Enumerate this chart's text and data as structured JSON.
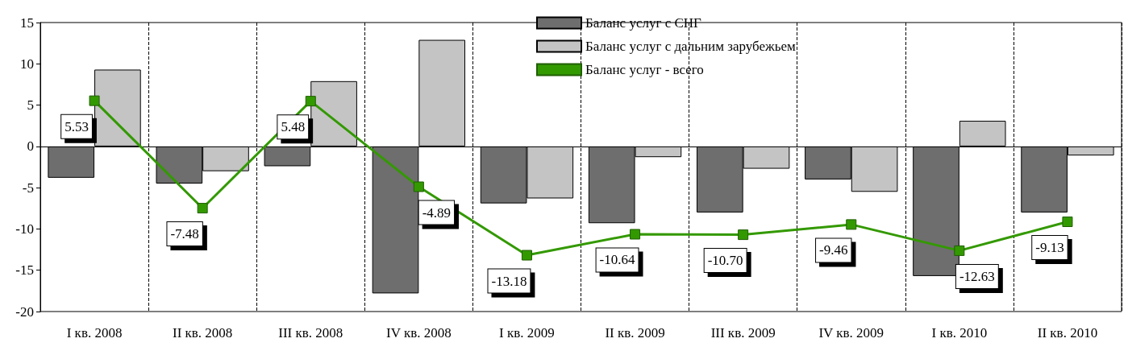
{
  "chart_data": {
    "type": "bar",
    "categories": [
      "I кв. 2008",
      "II кв. 2008",
      "III кв. 2008",
      "IV кв. 2008",
      "I кв. 2009",
      "II кв. 2009",
      "III кв. 2009",
      "IV кв. 2009",
      "I кв. 2010",
      "II кв. 2010"
    ],
    "series": [
      {
        "name": "Баланс услуг с СНГ",
        "color": "#6e6e6e",
        "values": [
          -3.8,
          -4.5,
          -2.4,
          -17.8,
          -6.9,
          -9.3,
          -8.0,
          -4.0,
          -15.7,
          -8.0
        ]
      },
      {
        "name": "Баланс услуг с дальним зарубежьем",
        "color": "#c4c4c4",
        "values": [
          9.3,
          -3.0,
          7.9,
          12.9,
          -6.3,
          -1.3,
          -2.7,
          -5.5,
          3.1,
          -1.1
        ]
      },
      {
        "name": "Баланс услуг - всего",
        "type": "line",
        "color": "#339900",
        "values": [
          5.53,
          -7.48,
          5.48,
          -4.89,
          -13.18,
          -10.64,
          -10.7,
          -9.46,
          -12.63,
          -9.13
        ],
        "value_labels": [
          "5.53",
          "-7.48",
          "5.48",
          "-4.89",
          "-13.18",
          "-10.64",
          "-10.70",
          "-9.46",
          "-12.63",
          "-9.13"
        ]
      }
    ],
    "ylim": [
      -20,
      15
    ],
    "yticks": [
      -20,
      -15,
      -10,
      -5,
      0,
      5,
      10,
      15
    ],
    "grid": "x",
    "legend": "top",
    "marker": "square",
    "line_style": "solid"
  }
}
